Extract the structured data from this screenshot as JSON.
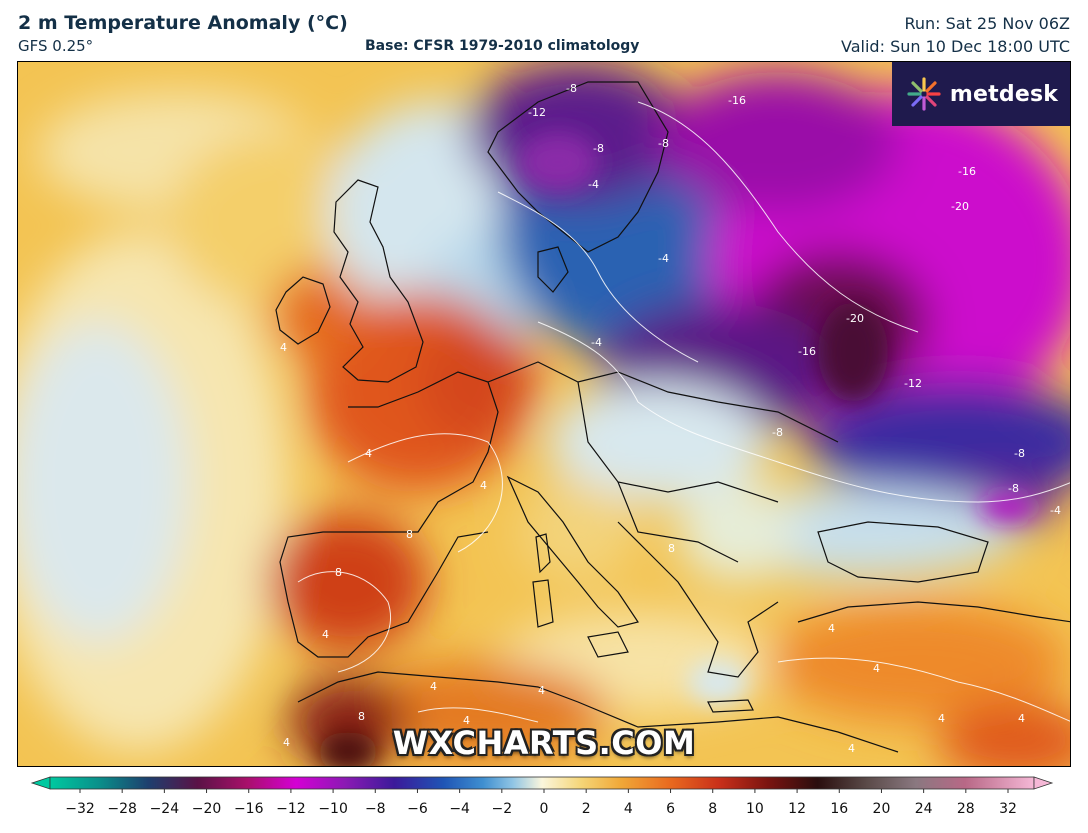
{
  "header": {
    "title": "2 m Temperature Anomaly (°C)",
    "model": "GFS 0.25°",
    "base": "Base: CFSR 1979-2010 climatology",
    "run": "Run: Sat 25 Nov 06Z",
    "valid": "Valid: Sun 10 Dec 18:00 UTC"
  },
  "logo": {
    "text": "metdesk",
    "icon": "metdesk-burst-icon"
  },
  "watermark": "WXCHARTS.COM",
  "colorbar": {
    "ticks": [
      "−32",
      "−28",
      "−24",
      "−20",
      "−16",
      "−12",
      "−10",
      "−8",
      "−6",
      "−4",
      "−2",
      "0",
      "2",
      "4",
      "6",
      "8",
      "10",
      "12",
      "16",
      "20",
      "24",
      "28",
      "32"
    ]
  },
  "contour_labels": [
    "-12",
    "-8",
    "-16",
    "-8",
    "-8",
    "-4",
    "-4",
    "-16",
    "-20",
    "-20",
    "-16",
    "-4",
    "-12",
    "-8",
    "-8",
    "-8",
    "-4",
    "8",
    "4",
    "4",
    "4",
    "4",
    "8",
    "8",
    "4",
    "4",
    "4",
    "4",
    "8",
    "4",
    "4",
    "4",
    "4",
    "4"
  ],
  "colors": {
    "very_warm": "#8b1a0f",
    "warm": "#e8641a",
    "mild_warm": "#f2b63a",
    "neutral": "#fbf1c2",
    "cool": "#bfe0ef",
    "cold": "#2b6fb5",
    "very_cold": "#4b1380",
    "extreme_cold": "#d100d1",
    "logo_bg": "#1f1a4d"
  }
}
